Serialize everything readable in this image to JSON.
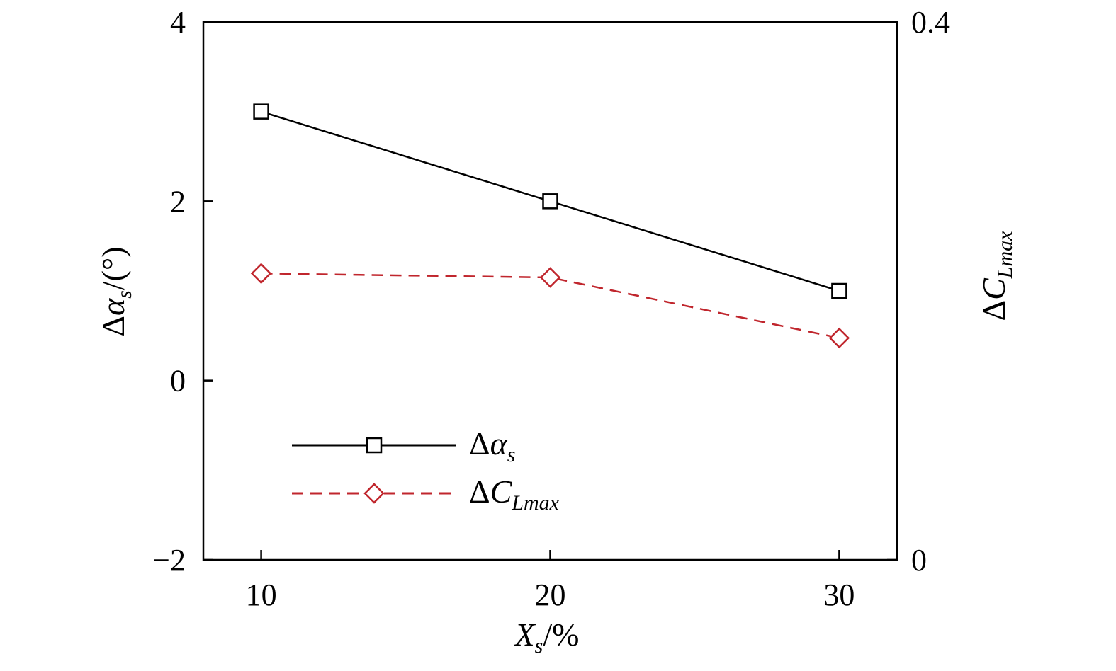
{
  "chart_data": {
    "type": "line",
    "title": "",
    "x": [
      10,
      20,
      30
    ],
    "xlim": [
      8,
      32
    ],
    "xticks": [
      "10",
      "20",
      "30"
    ],
    "xlabel": {
      "main": "X",
      "sub": "s",
      "suffix": "/%"
    },
    "ylim_left": [
      -2,
      4
    ],
    "yticks_left": [
      "−2",
      "0",
      "2",
      "4"
    ],
    "ylabel_left": {
      "delta": "Δ",
      "main": "α",
      "sub": "s",
      "suffix": "/(°)"
    },
    "ylim_right": [
      0,
      0.4
    ],
    "yticks_right": [
      "0",
      "0.4"
    ],
    "ylabel_right": {
      "delta": "Δ",
      "main": "C",
      "sub": "Lmax"
    },
    "grid": false,
    "legend_position": "lower-left",
    "series": [
      {
        "name": {
          "delta": "Δ",
          "main": "α",
          "sub": "s"
        },
        "axis": "left",
        "values": [
          3.0,
          2.0,
          1.0
        ],
        "color": "#000000",
        "line_style": "solid",
        "marker": "square"
      },
      {
        "name": {
          "delta": "Δ",
          "main": "C",
          "sub": "Lmax"
        },
        "axis": "right",
        "values": [
          0.213,
          0.21,
          0.165
        ],
        "color": "#c0262d",
        "line_style": "dashed",
        "marker": "diamond"
      }
    ]
  }
}
